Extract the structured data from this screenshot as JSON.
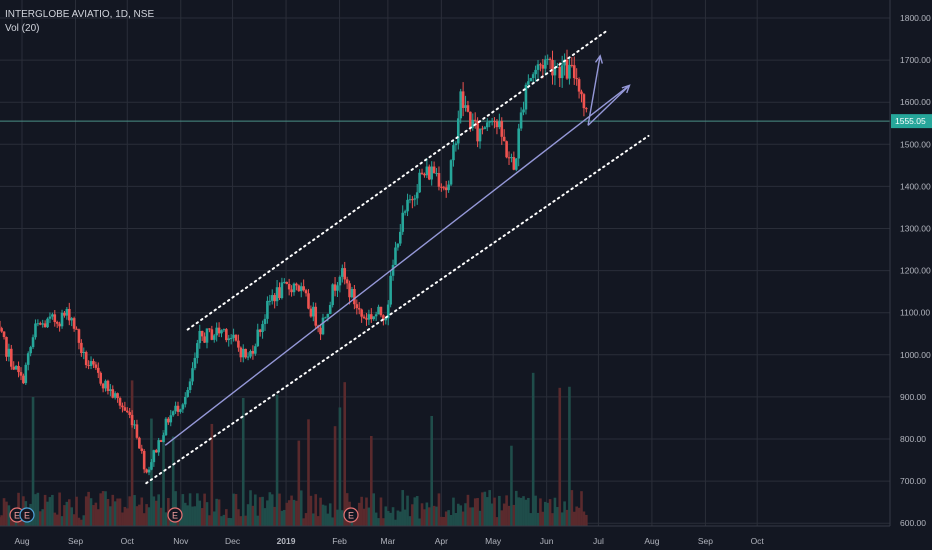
{
  "header": {
    "symbol_line": "INTERGLOBE AVIATIO, 1D, NSE",
    "volume_line": "Vol (20)"
  },
  "colors": {
    "background": "#131722",
    "grid": "#2a2e39",
    "up": "#26a69a",
    "down": "#ef5350",
    "channel_dots": "#ffffff",
    "trendline": "#9598d8",
    "price_line": "#4a8f86",
    "price_tag": "#26a69a",
    "event_marker": "#e57373"
  },
  "chart_data": {
    "type": "candlestick",
    "title": "INTERGLOBE AVIATIO, 1D, NSE",
    "indicator": "Vol (20)",
    "x_axis_labels": [
      "Aug",
      "Sep",
      "Oct",
      "Nov",
      "Dec",
      "2019",
      "Feb",
      "Mar",
      "Apr",
      "May",
      "Jun",
      "Jul",
      "Aug",
      "Sep",
      "Oct"
    ],
    "y_axis_labels": [
      "1800.00",
      "1700.00",
      "1600.00",
      "1500.00",
      "1400.00",
      "1300.00",
      "1200.00",
      "1100.00",
      "1000.00",
      "900.00",
      "800.00",
      "700.00",
      "600.00"
    ],
    "y_range": [
      600,
      1800
    ],
    "last_price": "1555.05",
    "event_markers": [
      "E",
      "E",
      "E",
      "E"
    ],
    "price_path": [
      {
        "date": "2018-07-16",
        "close": 1075
      },
      {
        "date": "2018-07-26",
        "close": 985
      },
      {
        "date": "2018-08-01",
        "close": 935
      },
      {
        "date": "2018-08-09",
        "close": 1065
      },
      {
        "date": "2018-08-22",
        "close": 1085
      },
      {
        "date": "2018-08-29",
        "close": 1100
      },
      {
        "date": "2018-09-06",
        "close": 990
      },
      {
        "date": "2018-09-20",
        "close": 920
      },
      {
        "date": "2018-10-05",
        "close": 840
      },
      {
        "date": "2018-10-12",
        "close": 720
      },
      {
        "date": "2018-10-25",
        "close": 850
      },
      {
        "date": "2018-11-05",
        "close": 905
      },
      {
        "date": "2018-11-12",
        "close": 1040
      },
      {
        "date": "2018-11-26",
        "close": 1060
      },
      {
        "date": "2018-12-10",
        "close": 990
      },
      {
        "date": "2018-12-24",
        "close": 1140
      },
      {
        "date": "2019-01-07",
        "close": 1170
      },
      {
        "date": "2019-01-21",
        "close": 1065
      },
      {
        "date": "2019-02-01",
        "close": 1200
      },
      {
        "date": "2019-02-14",
        "close": 1090
      },
      {
        "date": "2019-02-28",
        "close": 1100
      },
      {
        "date": "2019-03-07",
        "close": 1290
      },
      {
        "date": "2019-03-19",
        "close": 1420
      },
      {
        "date": "2019-03-28",
        "close": 1440
      },
      {
        "date": "2019-04-05",
        "close": 1390
      },
      {
        "date": "2019-04-12",
        "close": 1610
      },
      {
        "date": "2019-04-22",
        "close": 1520
      },
      {
        "date": "2019-04-30",
        "close": 1580
      },
      {
        "date": "2019-05-13",
        "close": 1440
      },
      {
        "date": "2019-05-20",
        "close": 1650
      },
      {
        "date": "2019-05-31",
        "close": 1700
      },
      {
        "date": "2019-06-12",
        "close": 1675
      },
      {
        "date": "2019-06-19",
        "close": 1660
      },
      {
        "date": "2019-06-25",
        "close": 1555
      }
    ],
    "channel_lines": [
      {
        "name": "upper-channel",
        "style": "dotted",
        "from": {
          "date": "2018-11-05",
          "price": 1060
        },
        "to": {
          "date": "2019-07-06",
          "price": 1770
        }
      },
      {
        "name": "lower-channel",
        "style": "dotted",
        "from": {
          "date": "2018-10-12",
          "price": 695
        },
        "to": {
          "date": "2019-07-30",
          "price": 1520
        }
      },
      {
        "name": "support-trendline",
        "style": "solid",
        "from": {
          "date": "2018-10-23",
          "price": 785
        },
        "to": {
          "date": "2019-07-19",
          "price": 1640
        }
      }
    ],
    "projection_arrows": [
      {
        "name": "up-arrow",
        "from": {
          "date": "2019-06-25",
          "price": 1545
        },
        "to": {
          "date": "2019-07-02",
          "price": 1710
        }
      },
      {
        "name": "trend-arrow",
        "from": {
          "date": "2019-06-25",
          "price": 1545
        },
        "to": {
          "date": "2019-07-19",
          "price": 1640
        }
      }
    ]
  }
}
